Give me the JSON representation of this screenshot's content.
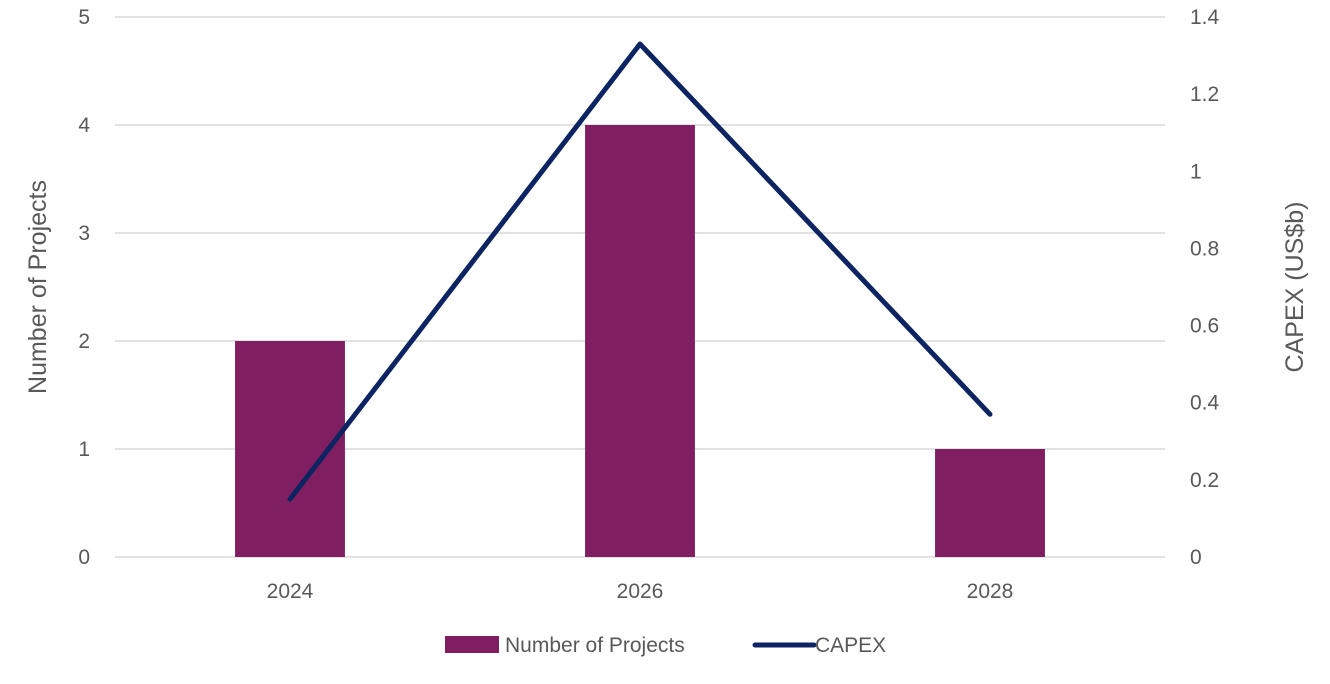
{
  "chart_data": {
    "type": "bar",
    "title": "",
    "categories": [
      "2024",
      "2026",
      "2028"
    ],
    "series": [
      {
        "name": "Number of Projects",
        "type": "bar",
        "axis": "left",
        "color": "#7F1F62",
        "values": [
          2,
          4,
          1
        ]
      },
      {
        "name": "CAPEX",
        "type": "line",
        "axis": "right",
        "color": "#0C2461",
        "values": [
          0.15,
          1.33,
          0.37
        ]
      }
    ],
    "xlabel": "",
    "ylabel": "Number of Projects",
    "ylabel_right": "CAPEX (US$b)",
    "ylim": [
      0,
      5
    ],
    "ylim_right": [
      0,
      1.4
    ],
    "yticks": [
      "0",
      "1",
      "2",
      "3",
      "4",
      "5"
    ],
    "yticks_right": [
      "0",
      "0.2",
      "0.4",
      "0.6",
      "0.8",
      "1",
      "1.2",
      "1.4"
    ],
    "grid": true,
    "legend_position": "bottom",
    "gridline_color": "#D9D9D9",
    "text_color": "#595959"
  }
}
